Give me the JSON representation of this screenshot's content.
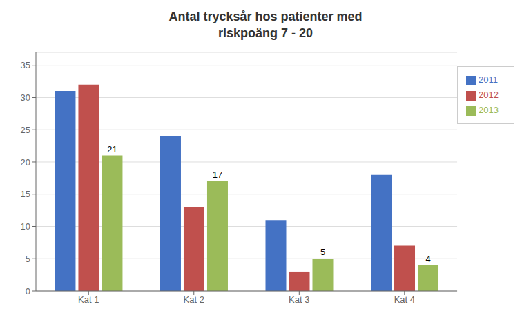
{
  "chart_data": {
    "type": "bar",
    "title": "Antal trycksår hos patienter med\nriskpoäng 7 - 20",
    "categories": [
      "Kat 1",
      "Kat 2",
      "Kat 3",
      "Kat 4"
    ],
    "series": [
      {
        "name": "2011",
        "color": "#4472C4",
        "values": [
          31,
          24,
          11,
          18
        ]
      },
      {
        "name": "2012",
        "color": "#C0504D",
        "values": [
          32,
          13,
          3,
          7
        ]
      },
      {
        "name": "2013",
        "color": "#9BBB59",
        "values": [
          21,
          17,
          5,
          4
        ],
        "data_labels": true
      }
    ],
    "ylim": [
      0,
      37
    ],
    "yticks": [
      0,
      5,
      10,
      15,
      20,
      25,
      30,
      35
    ],
    "grid": true,
    "legend": "upper right"
  }
}
